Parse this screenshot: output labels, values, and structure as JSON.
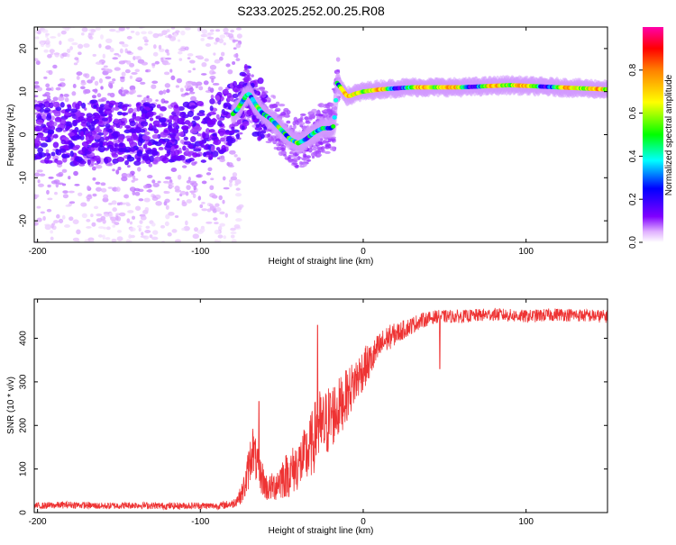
{
  "title": "S233.2025.252.00.25.R08",
  "chart_data": [
    {
      "type": "heatmap",
      "title": "S233.2025.252.00.25.R08",
      "xlabel": "Height of straight line (km)",
      "ylabel": "Frequency (Hz)",
      "xlim": [
        -202,
        150
      ],
      "ylim": [
        -25,
        25
      ],
      "xticks": [
        -200,
        -100,
        0,
        100
      ],
      "yticks": [
        -20,
        -10,
        0,
        10,
        20
      ],
      "grid": false,
      "ridge": {
        "x": [
          -202,
          -180,
          -160,
          -140,
          -120,
          -100,
          -90,
          -82,
          -77,
          -72,
          -70,
          -66,
          -62,
          -58,
          -55,
          -50,
          -45,
          -40,
          -35,
          -30,
          -25,
          -20,
          -18,
          -16,
          -14,
          -12,
          -10,
          -8,
          -5,
          0,
          10,
          30,
          60,
          90,
          120,
          150
        ],
        "y": [
          0.5,
          0,
          1,
          0,
          1,
          0.5,
          2,
          4,
          6,
          9,
          9.5,
          7,
          5,
          4,
          3,
          1,
          -1,
          -2,
          -1,
          0.5,
          1.5,
          1.5,
          2,
          12,
          11,
          10,
          9,
          9,
          9.5,
          10,
          10.5,
          11,
          11,
          11.5,
          11,
          10.5
        ]
      },
      "colorbar": {
        "label": "Normalized spectral amplitude",
        "ticks": [
          0.0,
          0.2,
          0.4,
          0.6,
          0.8
        ],
        "tick_labels": [
          "0.0",
          "0.2",
          "0.4",
          "0.6",
          "0.8"
        ],
        "range": [
          0,
          1
        ]
      }
    },
    {
      "type": "line",
      "title": "",
      "xlabel": "Height of straight line (km)",
      "ylabel": "SNR (10 * v/v)",
      "xlim": [
        -202,
        150
      ],
      "ylim": [
        0,
        490
      ],
      "xticks": [
        -200,
        -100,
        0,
        100
      ],
      "yticks": [
        0,
        100,
        200,
        300,
        400
      ],
      "grid": false,
      "series": [
        {
          "name": "SNR",
          "color": "#ee3333",
          "x": [
            -202,
            -180,
            -160,
            -140,
            -120,
            -100,
            -90,
            -80,
            -75,
            -72,
            -70,
            -68,
            -66,
            -64,
            -62,
            -60,
            -58,
            -55,
            -50,
            -45,
            -40,
            -35,
            -30,
            -28,
            -25,
            -20,
            -15,
            -10,
            -5,
            0,
            5,
            10,
            15,
            20,
            25,
            30,
            35,
            40,
            45,
            50,
            60,
            80,
            100,
            120,
            150
          ],
          "y": [
            15,
            18,
            15,
            17,
            15,
            16,
            15,
            20,
            40,
            70,
            110,
            150,
            120,
            90,
            80,
            60,
            55,
            60,
            80,
            90,
            110,
            130,
            170,
            200,
            190,
            220,
            240,
            270,
            300,
            330,
            350,
            380,
            400,
            410,
            420,
            430,
            440,
            445,
            450,
            450,
            450,
            455,
            450,
            455,
            450
          ],
          "noise": [
            8,
            8,
            8,
            8,
            8,
            8,
            8,
            10,
            20,
            40,
            50,
            60,
            50,
            45,
            40,
            35,
            30,
            35,
            50,
            55,
            60,
            70,
            80,
            90,
            85,
            80,
            70,
            60,
            55,
            50,
            40,
            35,
            30,
            25,
            22,
            20,
            18,
            16,
            15,
            15,
            15,
            15,
            15,
            15,
            15
          ],
          "spikes": [
            {
              "x": -64,
              "y": 255
            },
            {
              "x": -28,
              "y": 430
            },
            {
              "x": 47,
              "y": 330
            }
          ]
        }
      ]
    }
  ]
}
